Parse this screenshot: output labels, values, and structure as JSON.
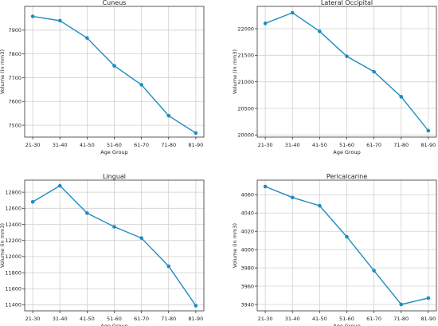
{
  "chart_data": [
    {
      "type": "line",
      "title": "Cuneus",
      "xlabel": "Age Group",
      "ylabel": "Volume (in mm3)",
      "categories": [
        "21-30",
        "31-40",
        "41-50",
        "51-60",
        "61-70",
        "71-80",
        "81-90"
      ],
      "values": [
        7958,
        7940,
        7867,
        7750,
        7670,
        7540,
        7467
      ],
      "ylim": [
        7450,
        8000
      ],
      "yticks": [
        7500,
        7600,
        7700,
        7800,
        7900
      ],
      "grid": true,
      "line_color": "#1f8cbf"
    },
    {
      "type": "line",
      "title": "Lateral Occipital",
      "xlabel": "Age Group",
      "ylabel": "Volume (in mm3)",
      "categories": [
        "21-30",
        "31-40",
        "41-50",
        "51-60",
        "61-70",
        "71-80",
        "81-90"
      ],
      "values": [
        22100,
        22300,
        21950,
        21480,
        21190,
        20720,
        20080
      ],
      "ylim": [
        19960,
        22420
      ],
      "yticks": [
        20000,
        20500,
        21000,
        21500,
        22000
      ],
      "grid": true,
      "line_color": "#1f8cbf"
    },
    {
      "type": "line",
      "title": "Lingual",
      "xlabel": "Age Group",
      "ylabel": "Volume (in mm3)",
      "categories": [
        "21-30",
        "31-40",
        "41-50",
        "51-60",
        "61-70",
        "71-80",
        "81-90"
      ],
      "values": [
        12680,
        12880,
        12540,
        12370,
        12230,
        11880,
        11390
      ],
      "ylim": [
        11325,
        12950
      ],
      "yticks": [
        11400,
        11600,
        11800,
        12000,
        12200,
        12400,
        12600,
        12800
      ],
      "grid": true,
      "line_color": "#1f8cbf"
    },
    {
      "type": "line",
      "title": "Pericalcarine",
      "xlabel": "Age Group",
      "ylabel": "Volume (in mm3)",
      "categories": [
        "21-30",
        "31-40",
        "41-50",
        "51-60",
        "61-70",
        "71-80",
        "81-90"
      ],
      "values": [
        4069,
        4057,
        4048,
        4014,
        3977,
        3940,
        3947
      ],
      "ylim": [
        3933,
        4076
      ],
      "yticks": [
        3940,
        3960,
        3980,
        4000,
        4020,
        4040,
        4060
      ],
      "grid": true,
      "line_color": "#1f8cbf"
    }
  ]
}
